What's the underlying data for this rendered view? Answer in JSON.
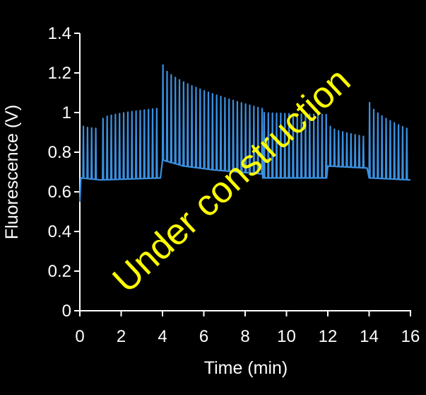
{
  "chart_data": {
    "type": "line",
    "title": "",
    "xlabel": "Time (min)",
    "ylabel": "Fluorescence (V)",
    "xlim": [
      0,
      16
    ],
    "ylim": [
      0,
      1.4
    ],
    "x_ticks": [
      "0",
      "2",
      "4",
      "6",
      "8",
      "10",
      "12",
      "14",
      "16"
    ],
    "y_ticks": [
      "0",
      "0.2",
      "0.4",
      "0.6",
      "0.8",
      "1",
      "1.2",
      "1.4"
    ],
    "grid": false,
    "legend": "none",
    "series": [
      {
        "color": "#3a8fe0",
        "baseline": [
          {
            "x": 0.0,
            "y": 0.55
          },
          {
            "x": 0.05,
            "y": 0.67
          },
          {
            "x": 1.0,
            "y": 0.66
          },
          {
            "x": 3.9,
            "y": 0.67
          },
          {
            "x": 4.0,
            "y": 0.76
          },
          {
            "x": 5.0,
            "y": 0.73
          },
          {
            "x": 6.5,
            "y": 0.71
          },
          {
            "x": 8.8,
            "y": 0.69
          },
          {
            "x": 8.85,
            "y": 0.67
          },
          {
            "x": 11.9,
            "y": 0.67
          },
          {
            "x": 12.0,
            "y": 0.73
          },
          {
            "x": 13.9,
            "y": 0.72
          },
          {
            "x": 14.0,
            "y": 0.67
          },
          {
            "x": 16.0,
            "y": 0.66
          }
        ],
        "spike_segments": [
          {
            "start": 0.15,
            "end": 0.9,
            "interval": 0.2,
            "peak_start": 0.93,
            "peak_end": 0.92
          },
          {
            "start": 1.1,
            "end": 3.8,
            "interval": 0.2,
            "peak_start": 0.97,
            "peak_end": 1.02
          },
          {
            "start": 4.0,
            "end": 8.8,
            "interval": 0.2,
            "peak_start": 1.24,
            "peak_end": 1.02
          },
          {
            "start": 8.9,
            "end": 11.9,
            "interval": 0.2,
            "peak_start": 1.0,
            "peak_end": 0.99
          },
          {
            "start": 12.1,
            "end": 13.8,
            "interval": 0.2,
            "peak_start": 0.93,
            "peak_end": 0.88
          },
          {
            "start": 14.0,
            "end": 15.8,
            "interval": 0.2,
            "peak_start": 1.05,
            "peak_end": 0.92
          }
        ]
      }
    ]
  },
  "watermark": {
    "text": "Under construction",
    "color": "#ffff00"
  }
}
